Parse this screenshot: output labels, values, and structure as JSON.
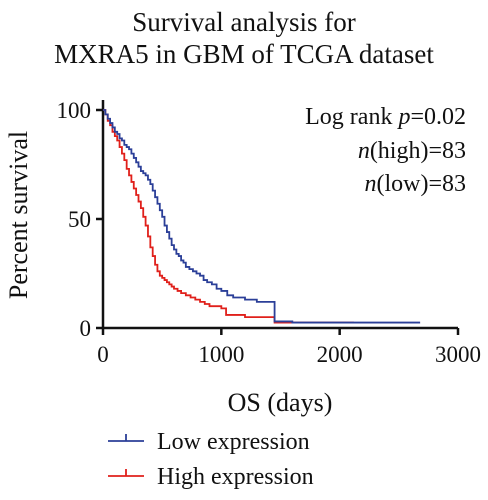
{
  "chart_data": {
    "type": "line",
    "title_line1": "Survival analysis for",
    "title_line2": "MXRA5 in GBM of TCGA dataset",
    "xlabel": "OS (days)",
    "ylabel": "Percent survival",
    "xlim": [
      0,
      3000
    ],
    "ylim": [
      0,
      100
    ],
    "x_ticks": [
      "0",
      "1000",
      "2000",
      "3000"
    ],
    "y_ticks": [
      "0",
      "50",
      "100"
    ],
    "annotation": {
      "logrank_label": "Log rank ",
      "p_symbol": "p",
      "p_value": "=0.02",
      "n_symbol": "n",
      "n_high_label": "(high)=83",
      "n_low_label": "(low)=83"
    },
    "legend_position": "bottom",
    "series": [
      {
        "name": "Low expression",
        "color": "#2b3f98",
        "x": [
          0,
          20,
          40,
          60,
          80,
          100,
          120,
          140,
          160,
          180,
          200,
          220,
          240,
          260,
          280,
          300,
          320,
          340,
          360,
          380,
          400,
          420,
          440,
          460,
          480,
          500,
          520,
          540,
          560,
          580,
          600,
          620,
          640,
          660,
          680,
          700,
          730,
          760,
          790,
          820,
          850,
          880,
          920,
          960,
          1000,
          1050,
          1100,
          1200,
          1300,
          1420,
          1450,
          1500,
          1600,
          1800,
          2000,
          2200,
          2400,
          2600,
          2680
        ],
        "values": [
          100,
          98,
          96,
          94,
          92,
          90,
          89,
          87,
          86,
          84,
          83,
          82,
          80,
          78,
          76,
          74,
          72,
          71,
          70,
          68,
          66,
          63,
          60,
          57,
          54,
          51,
          47,
          44,
          41,
          38,
          36,
          34,
          33,
          31,
          30,
          28,
          27,
          26,
          25,
          24,
          22,
          21,
          20,
          18,
          17,
          15,
          14,
          13,
          12,
          12,
          3,
          3,
          2.5,
          2.5,
          2.5,
          2.5,
          2.5,
          2.5,
          2.5
        ]
      },
      {
        "name": "High expression",
        "color": "#e0201b",
        "x": [
          0,
          20,
          40,
          60,
          80,
          100,
          120,
          140,
          160,
          180,
          200,
          220,
          240,
          260,
          280,
          300,
          320,
          340,
          360,
          380,
          400,
          420,
          440,
          460,
          480,
          500,
          520,
          540,
          560,
          580,
          600,
          630,
          660,
          700,
          740,
          780,
          820,
          860,
          900,
          950,
          1000,
          1040,
          1100,
          1200,
          1400,
          1450,
          1500,
          1600,
          1800,
          2000,
          2120
        ],
        "values": [
          100,
          98,
          95,
          93,
          90,
          88,
          86,
          83,
          80,
          77,
          73,
          70,
          67,
          64,
          61,
          58,
          55,
          51,
          47,
          42,
          37,
          33,
          29,
          26,
          24,
          23,
          22,
          21,
          20,
          19,
          18,
          17,
          16,
          15,
          14,
          13,
          12,
          11,
          10,
          10,
          9,
          6,
          6,
          5,
          5,
          2.5,
          2.5,
          2.5,
          2.5,
          2.5,
          2.5
        ]
      }
    ]
  }
}
